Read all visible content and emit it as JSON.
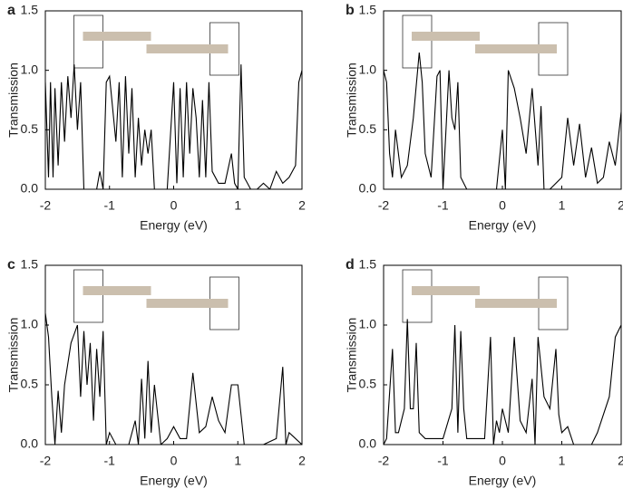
{
  "chart_data": [
    {
      "type": "line",
      "label": "a",
      "xlabel": "Energy (eV)",
      "ylabel": "Transmission",
      "xlim": [
        -2,
        2
      ],
      "xticks": [
        -2,
        -1,
        0,
        1,
        2
      ],
      "ylim": [
        0,
        1.5
      ],
      "yticks": [
        {
          "value": 0,
          "label": "0.0"
        },
        0.5,
        {
          "value": 1,
          "label": "1.0"
        },
        1.5
      ],
      "series": [
        {
          "color": "#000000",
          "x": [
            -2,
            -1.95,
            -1.92,
            -1.88,
            -1.85,
            -1.8,
            -1.75,
            -1.7,
            -1.65,
            -1.6,
            -1.55,
            -1.5,
            -1.45,
            -1.4,
            -1.38,
            -1.3,
            -1.2,
            -1.15,
            -1.1,
            -1.05,
            -1.0,
            -0.9,
            -0.85,
            -0.8,
            -0.75,
            -0.7,
            -0.65,
            -0.6,
            -0.55,
            -0.5,
            -0.45,
            -0.4,
            -0.35,
            -0.3,
            -0.25,
            -0.2,
            -0.1,
            0,
            0.05,
            0.1,
            0.15,
            0.2,
            0.25,
            0.3,
            0.35,
            0.4,
            0.45,
            0.5,
            0.55,
            0.6,
            0.7,
            0.8,
            0.9,
            0.95,
            1.0,
            1.05,
            1.1,
            1.15,
            1.2,
            1.3,
            1.4,
            1.5,
            1.6,
            1.7,
            1.8,
            1.9,
            1.95,
            2
          ],
          "values": [
            0.9,
            0.1,
            0.9,
            0.1,
            0.85,
            0.2,
            0.9,
            0.4,
            0.95,
            0.6,
            1.05,
            0.5,
            0.9,
            0,
            0,
            0,
            0,
            0.15,
            0,
            0.9,
            0.95,
            0.4,
            0.9,
            0.1,
            0.95,
            0.3,
            0.85,
            0.1,
            0.6,
            0.2,
            0.5,
            0.3,
            0.5,
            0,
            0,
            0,
            0,
            0.9,
            0.05,
            0.85,
            0.1,
            0.9,
            0.3,
            0.85,
            0.6,
            0.1,
            0.75,
            0.1,
            0.9,
            0.15,
            0.05,
            0.05,
            0.3,
            0.05,
            0,
            1.05,
            0.1,
            0.05,
            0,
            0,
            0.05,
            0,
            0.15,
            0.05,
            0.1,
            0.2,
            0.9,
            1.0
          ]
        }
      ]
    },
    {
      "type": "line",
      "label": "b",
      "xlabel": "Energy (eV)",
      "ylabel": "Transmission",
      "xlim": [
        -2,
        2
      ],
      "xticks": [
        -2,
        -1,
        0,
        1,
        2
      ],
      "ylim": [
        0,
        1.5
      ],
      "yticks": [
        {
          "value": 0,
          "label": "0.0"
        },
        0.5,
        {
          "value": 1,
          "label": "1.0"
        },
        1.5
      ],
      "series": [
        {
          "color": "#000000",
          "x": [
            -2,
            -1.95,
            -1.9,
            -1.85,
            -1.8,
            -1.7,
            -1.6,
            -1.5,
            -1.4,
            -1.35,
            -1.3,
            -1.2,
            -1.1,
            -1.05,
            -1.0,
            -0.9,
            -0.85,
            -0.8,
            -0.75,
            -0.7,
            -0.6,
            -0.5,
            -0.3,
            -0.1,
            0,
            0.05,
            0.1,
            0.2,
            0.3,
            0.4,
            0.5,
            0.6,
            0.65,
            0.7,
            0.8,
            1.0,
            1.1,
            1.2,
            1.3,
            1.4,
            1.5,
            1.6,
            1.7,
            1.8,
            1.9,
            2
          ],
          "values": [
            1.0,
            0.9,
            0.3,
            0.1,
            0.5,
            0.1,
            0.2,
            0.6,
            1.15,
            0.9,
            0.3,
            0.1,
            0.95,
            1.0,
            0,
            1.0,
            0.6,
            0.5,
            0.9,
            0.1,
            0,
            0,
            0,
            0,
            0.5,
            0,
            1.0,
            0.85,
            0.6,
            0.3,
            0.85,
            0.2,
            0.7,
            0,
            0,
            0.1,
            0.6,
            0.2,
            0.55,
            0.1,
            0.35,
            0.05,
            0.1,
            0.4,
            0.2,
            0.65
          ]
        }
      ]
    },
    {
      "type": "line",
      "label": "c",
      "xlabel": "Energy (eV)",
      "ylabel": "Transmission",
      "xlim": [
        -2,
        2
      ],
      "xticks": [
        -2,
        -1,
        0,
        1,
        2
      ],
      "ylim": [
        0,
        1.5
      ],
      "yticks": [
        {
          "value": 0,
          "label": "0.0"
        },
        0.5,
        {
          "value": 1,
          "label": "1.0"
        },
        1.5
      ],
      "series": [
        {
          "color": "#000000",
          "x": [
            -2,
            -1.95,
            -1.9,
            -1.85,
            -1.8,
            -1.75,
            -1.7,
            -1.6,
            -1.5,
            -1.45,
            -1.4,
            -1.35,
            -1.3,
            -1.25,
            -1.2,
            -1.15,
            -1.1,
            -1.05,
            -1.0,
            -0.9,
            -0.8,
            -0.7,
            -0.6,
            -0.55,
            -0.5,
            -0.45,
            -0.4,
            -0.35,
            -0.3,
            -0.2,
            -0.1,
            0,
            0.1,
            0.2,
            0.3,
            0.4,
            0.5,
            0.6,
            0.7,
            0.8,
            0.9,
            1.0,
            1.1,
            1.2,
            1.4,
            1.6,
            1.7,
            1.75,
            1.8,
            2
          ],
          "values": [
            1.1,
            0.9,
            0.4,
            0,
            0.45,
            0.1,
            0.5,
            0.85,
            1.0,
            0.4,
            0.95,
            0.5,
            0.85,
            0.2,
            0.8,
            0.4,
            0.95,
            0,
            0.1,
            0,
            0,
            0,
            0.2,
            0,
            0.55,
            0.05,
            0.7,
            0.1,
            0.5,
            0,
            0.05,
            0.15,
            0.05,
            0.05,
            0.6,
            0.1,
            0.15,
            0.4,
            0.2,
            0.1,
            0.5,
            0.5,
            0,
            0,
            0,
            0.05,
            0.65,
            0,
            0.1,
            0
          ]
        }
      ]
    },
    {
      "type": "line",
      "label": "d",
      "xlabel": "Energy (eV)",
      "ylabel": "Transmission",
      "xlim": [
        -2,
        2
      ],
      "xticks": [
        -2,
        -1,
        0,
        1,
        2
      ],
      "ylim": [
        0,
        1.5
      ],
      "yticks": [
        {
          "value": 0,
          "label": "0.0"
        },
        0.5,
        {
          "value": 1,
          "label": "1.0"
        },
        1.5
      ],
      "series": [
        {
          "color": "#000000",
          "x": [
            -2,
            -1.95,
            -1.85,
            -1.8,
            -1.75,
            -1.65,
            -1.6,
            -1.55,
            -1.5,
            -1.45,
            -1.4,
            -1.3,
            -1.0,
            -0.85,
            -0.8,
            -0.75,
            -0.7,
            -0.65,
            -0.6,
            -0.3,
            -0.2,
            -0.15,
            -0.1,
            -0.05,
            0,
            0.1,
            0.2,
            0.3,
            0.4,
            0.5,
            0.55,
            0.6,
            0.7,
            0.8,
            0.9,
            0.95,
            1.0,
            1.1,
            1.2,
            1.5,
            1.6,
            1.8,
            1.9,
            2
          ],
          "values": [
            0,
            0.05,
            0.8,
            0.1,
            0.1,
            0.3,
            1.05,
            0.3,
            0.3,
            0.85,
            0.1,
            0.05,
            0.05,
            0.3,
            1.0,
            0.1,
            0.95,
            0.3,
            0.05,
            0.05,
            0.9,
            0,
            0.2,
            0.1,
            0.3,
            0.1,
            0.9,
            0.2,
            0.1,
            0.55,
            0,
            0.9,
            0.4,
            0.3,
            0.8,
            0.25,
            0.1,
            0.15,
            0,
            0,
            0.1,
            0.4,
            0.9,
            1.0
          ]
        }
      ]
    }
  ]
}
